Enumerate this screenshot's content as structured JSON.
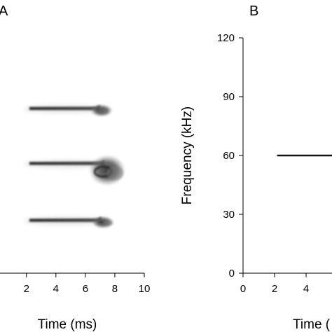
{
  "panels": [
    {
      "id": "A",
      "label": "A",
      "xlabel": "Time (ms)",
      "x_tick_labels": [
        "2",
        "4",
        "6",
        "8",
        "10"
      ]
    },
    {
      "id": "B",
      "label": "B",
      "xlabel": "Time (",
      "ylabel": "Frequency (kHz)",
      "x_tick_labels": [
        "0",
        "2",
        "4"
      ],
      "y_tick_labels": [
        "120",
        "90",
        "60",
        "30",
        "0"
      ]
    }
  ],
  "chart_data": [
    {
      "panel": "A",
      "type": "spectrogram",
      "title": "",
      "xlabel": "Time (ms)",
      "ylabel": "",
      "xlim": [
        0.3,
        10
      ],
      "ylim": [
        0,
        120
      ],
      "x_ticks": [
        2,
        4,
        6,
        8,
        10
      ],
      "grid": false,
      "colormap": "grayscale",
      "components": [
        {
          "frequency_khz": 84,
          "t_start_ms": 2.2,
          "t_end_ms": 7.4,
          "blob_center_ms": 7.0
        },
        {
          "frequency_khz": 56,
          "t_start_ms": 2.2,
          "t_end_ms": 8.2,
          "blob_center_ms": 7.3
        },
        {
          "frequency_khz": 27,
          "t_start_ms": 2.2,
          "t_end_ms": 7.7,
          "blob_center_ms": 7.1
        }
      ]
    },
    {
      "panel": "B",
      "type": "spectrogram",
      "title": "",
      "xlabel": "Time (",
      "ylabel": "Frequency (kHz)",
      "xlim": [
        0,
        7.2
      ],
      "ylim": [
        0,
        120
      ],
      "x_ticks": [
        0,
        2,
        4
      ],
      "y_ticks": [
        0,
        30,
        60,
        90,
        120
      ],
      "grid": false,
      "colormap": "grayscale",
      "components": [
        {
          "frequency_khz": 60,
          "t_start_ms": 2.2,
          "t_end_ms": 7.2
        }
      ]
    }
  ]
}
